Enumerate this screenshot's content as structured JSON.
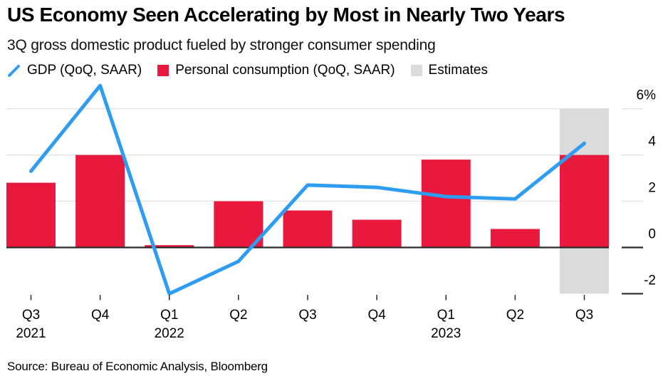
{
  "page": {
    "title": "US Economy Seen Accelerating by Most in Nearly Two Years",
    "subtitle": "3Q gross domestic product fueled by stronger consumer spending",
    "source": "Source: Bureau of Economic Analysis, Bloomberg"
  },
  "legend": {
    "items": [
      {
        "label": "GDP (QoQ, SAAR)",
        "swatch": "line",
        "color": "#2E9CF0"
      },
      {
        "label": "Personal consumption (QoQ, SAAR)",
        "swatch": "square",
        "color": "#E8193C"
      },
      {
        "label": "Estimates",
        "swatch": "square",
        "color": "#DBDBDB"
      }
    ]
  },
  "chart_data": {
    "type": "combo-bar-line",
    "title": "US Economy Seen Accelerating by Most in Nearly Two Years",
    "subtitle": "3Q gross domestic product fueled by stronger consumer spending",
    "categories": [
      "Q3 2021",
      "Q4 2021",
      "Q1 2022",
      "Q2 2022",
      "Q3 2022",
      "Q4 2022",
      "Q1 2023",
      "Q2 2023",
      "Q3 2023"
    ],
    "x_ticks": [
      {
        "quarter": "Q3",
        "year": "2021"
      },
      {
        "quarter": "Q4",
        "year": ""
      },
      {
        "quarter": "Q1",
        "year": "2022"
      },
      {
        "quarter": "Q2",
        "year": ""
      },
      {
        "quarter": "Q3",
        "year": ""
      },
      {
        "quarter": "Q4",
        "year": ""
      },
      {
        "quarter": "Q1",
        "year": "2023"
      },
      {
        "quarter": "Q2",
        "year": ""
      },
      {
        "quarter": "Q3",
        "year": ""
      }
    ],
    "series": [
      {
        "name": "GDP (QoQ, SAAR)",
        "type": "line",
        "color": "#2E9CF0",
        "values": [
          3.3,
          7.0,
          -2.0,
          -0.6,
          2.7,
          2.6,
          2.2,
          2.1,
          4.5
        ]
      },
      {
        "name": "Personal consumption (QoQ, SAAR)",
        "type": "bar",
        "color": "#E8193C",
        "values": [
          2.8,
          4.0,
          0.1,
          2.0,
          1.6,
          1.2,
          3.8,
          0.8,
          4.0
        ]
      }
    ],
    "estimates_band": {
      "label": "Estimates",
      "category": "Q3 2023",
      "index": 8,
      "color": "#DBDBDB",
      "from_value": 6,
      "to_value": -2
    },
    "y_axis": {
      "side": "right",
      "unit": "%",
      "tick_values": [
        6,
        4,
        2,
        0,
        -2
      ],
      "tick_labels": [
        "6%",
        "4",
        "2",
        "0",
        "-2"
      ],
      "grid_values": [
        6,
        4,
        2
      ],
      "min": -2,
      "max": 7.2,
      "zero_line": true
    },
    "grid": "horizontal",
    "legend_position": "top",
    "source": "Source: Bureau of Economic Analysis, Bloomberg"
  },
  "style": {
    "grid_color": "#E4E4E4",
    "zero_line_color": "#2B2B2B",
    "tick_color": "#2B2B2B",
    "text_color": "#000000"
  }
}
